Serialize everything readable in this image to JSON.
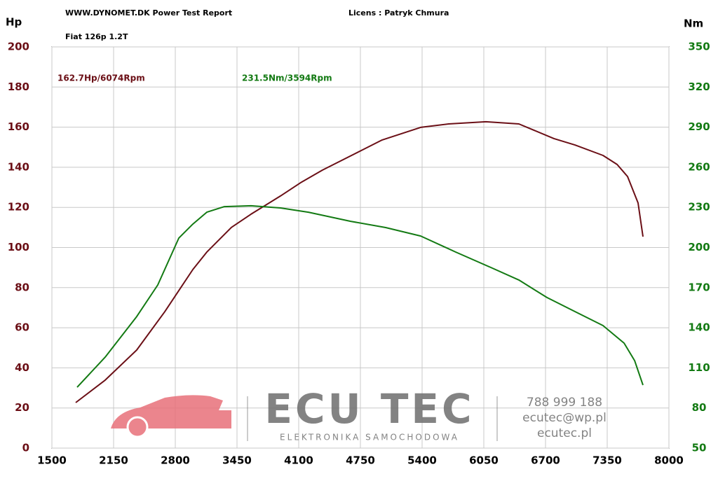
{
  "chart_data": {
    "type": "line",
    "title": "WWW.DYNOMET.DK  Power Test Report",
    "license": "Licens :  Patryk Chmura",
    "subtitle": "Fiat 126p 1.2T",
    "y_label": "Hp",
    "y2_label": "Nm",
    "annotations": [
      {
        "text": "162.7Hp/6074Rpm",
        "color": "#6b0f16"
      },
      {
        "text": "231.5Nm/3594Rpm",
        "color": "#137a13"
      }
    ],
    "watermark": {
      "brand": "ECU TEC",
      "tagline": "ELEKTRONIKA SAMOCHODOWA",
      "phone": "788 999 188",
      "email": "ecutec@wp.pl",
      "web": "ecutec.pl"
    },
    "xlim": [
      1500,
      8000
    ],
    "xticks": [
      1500,
      2150,
      2800,
      3450,
      4100,
      4750,
      5400,
      6050,
      6700,
      7350,
      8000
    ],
    "ylim": [
      0,
      200
    ],
    "yticks": [
      0,
      20,
      40,
      60,
      80,
      100,
      120,
      140,
      160,
      180,
      200
    ],
    "y2lim": [
      50,
      350
    ],
    "y2ticks": [
      50,
      80,
      110,
      140,
      170,
      200,
      230,
      260,
      290,
      320,
      350
    ],
    "grid": true,
    "series": [
      {
        "color": "#6b0f16",
        "x": [
          1751,
          2061,
          2394,
          2689,
          2837,
          2985,
          3132,
          3391,
          3598,
          3908,
          4130,
          4351,
          4757,
          4979,
          5385,
          5680,
          6072,
          6419,
          6789,
          7010,
          7306,
          7454,
          7564,
          7675,
          7727
        ],
        "values": [
          22.7,
          33.9,
          48.9,
          68,
          78.5,
          89,
          97.7,
          110,
          116.6,
          125.7,
          132.6,
          138.6,
          148.3,
          153.6,
          159.9,
          161.6,
          162.7,
          161.6,
          154.3,
          151.1,
          145.9,
          141.4,
          135.4,
          122.2,
          105.4
        ]
      },
      {
        "color": "#137a13",
        "axis": "y2",
        "x": [
          1766,
          2061,
          2394,
          2615,
          2837,
          2985,
          3132,
          3317,
          3598,
          3908,
          4203,
          4647,
          5016,
          5385,
          5754,
          6124,
          6419,
          6715,
          7010,
          7306,
          7528,
          7639,
          7727
        ],
        "values": [
          95.5,
          118,
          148.4,
          172,
          207,
          217.5,
          226.4,
          230.6,
          231.2,
          229.6,
          226.4,
          219.6,
          214.9,
          208.6,
          196.6,
          185.1,
          175.7,
          162.6,
          152.1,
          141.6,
          128.5,
          115.4,
          97.1
        ]
      }
    ]
  }
}
